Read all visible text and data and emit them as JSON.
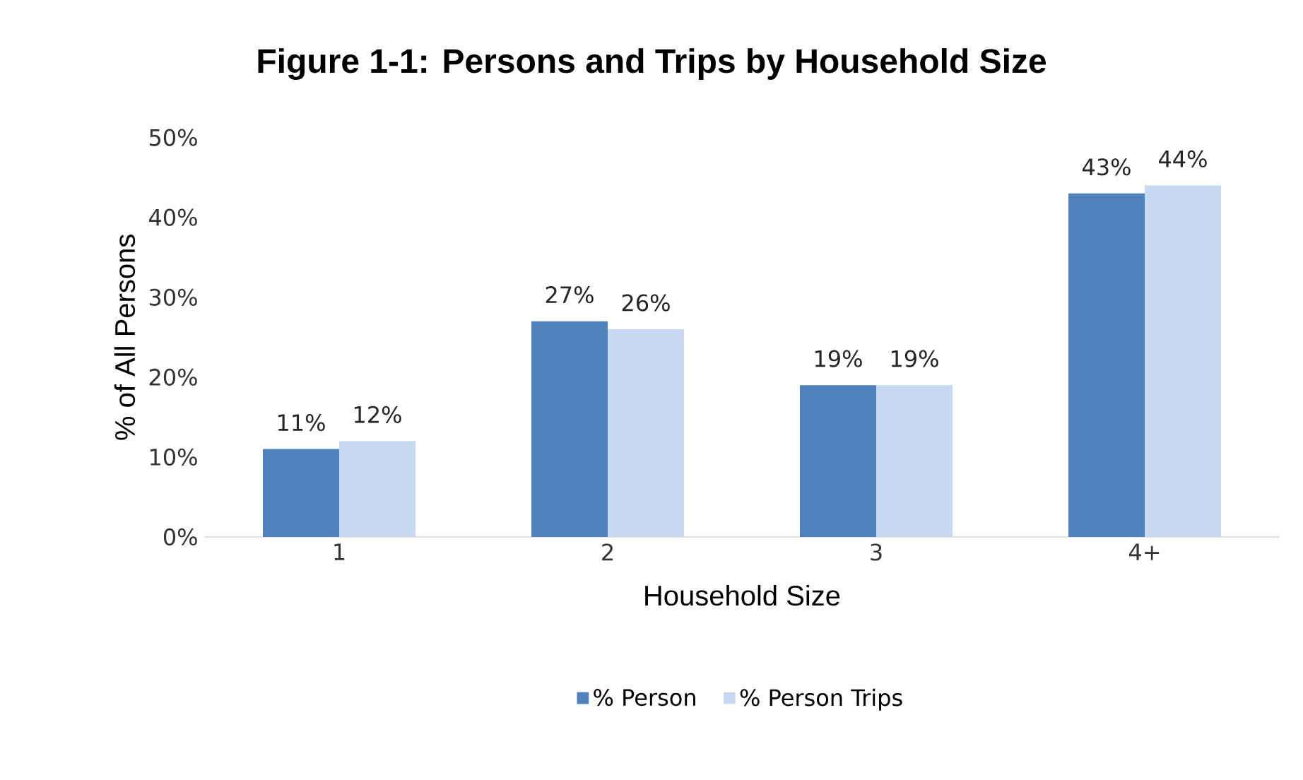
{
  "chart_data": {
    "type": "bar",
    "title": "Figure 1-1:  Persons and Trips by Household Size",
    "xlabel": "Household Size",
    "ylabel": "% of All Persons",
    "categories": [
      "1",
      "2",
      "3",
      "4+"
    ],
    "series": [
      {
        "name": "% Person",
        "color": "#4f81bd",
        "values": [
          11,
          27,
          19,
          43
        ],
        "value_labels": [
          "11%",
          "27%",
          "19%",
          "43%"
        ]
      },
      {
        "name": "% Person Trips",
        "color": "#c6d9f1",
        "values": [
          12,
          26,
          19,
          44
        ],
        "value_labels": [
          "12%",
          "26%",
          "19%",
          "44%"
        ]
      }
    ],
    "ylim": [
      0,
      50
    ],
    "yticks": [
      {
        "value": 0,
        "label": "0%"
      },
      {
        "value": 10,
        "label": "10%"
      },
      {
        "value": 20,
        "label": "20%"
      },
      {
        "value": 30,
        "label": "30%"
      },
      {
        "value": 40,
        "label": "40%"
      },
      {
        "value": 50,
        "label": "50%"
      }
    ],
    "legend": "bottom"
  }
}
